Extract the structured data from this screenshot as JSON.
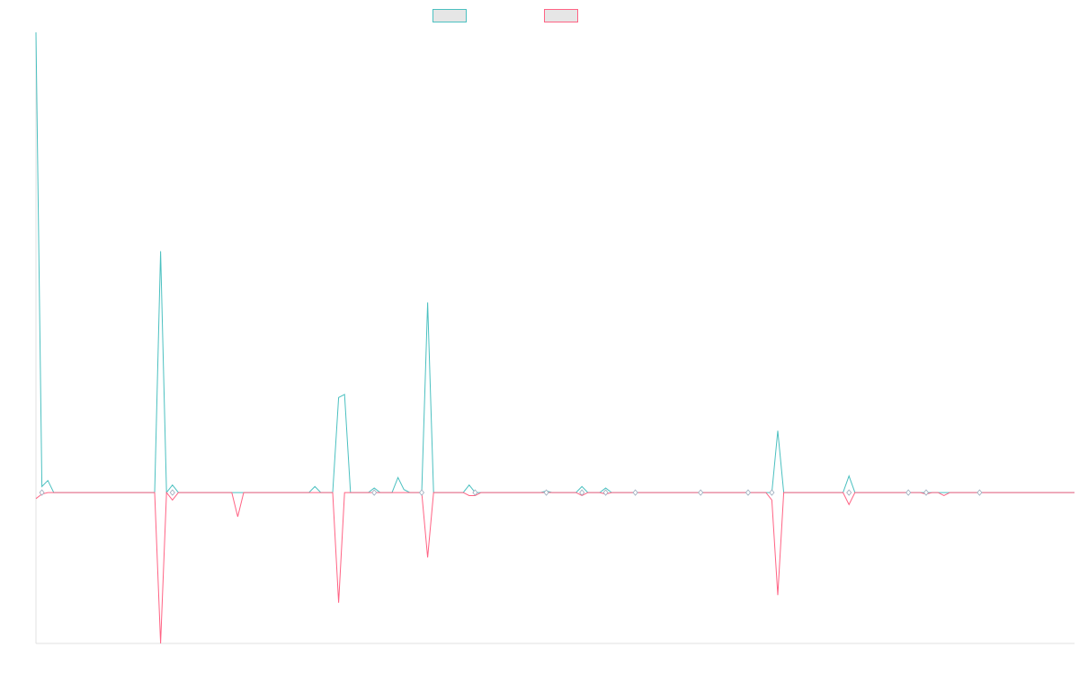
{
  "chart_data": {
    "type": "line",
    "title": "",
    "xlabel": "",
    "ylabel": "",
    "legend_placement": "top-center",
    "grid": false,
    "x_count": 176,
    "xlim": [
      0,
      175
    ],
    "ylim": [
      -1.0,
      3.05
    ],
    "baseline": 0,
    "series": [
      {
        "name": "",
        "color": "#4bc0c0",
        "fill": "#e6e6e6",
        "peaks": [
          [
            0,
            3.05
          ],
          [
            1,
            0.04
          ],
          [
            2,
            0.08
          ],
          [
            21,
            1.6
          ],
          [
            23,
            0.05
          ],
          [
            47,
            0.04
          ],
          [
            51,
            0.63
          ],
          [
            52,
            0.65
          ],
          [
            57,
            0.03
          ],
          [
            61,
            0.1
          ],
          [
            62,
            0.02
          ],
          [
            66,
            1.26
          ],
          [
            73,
            0.05
          ],
          [
            86,
            0.01
          ],
          [
            92,
            0.04
          ],
          [
            96,
            0.03
          ],
          [
            125,
            0.41
          ],
          [
            137,
            0.11
          ]
        ]
      },
      {
        "name": "",
        "color": "#ff6384",
        "fill": "#e6e6e6",
        "peaks": [
          [
            0,
            -0.04
          ],
          [
            1,
            -0.01
          ],
          [
            21,
            -1.0
          ],
          [
            23,
            -0.05
          ],
          [
            34,
            -0.16
          ],
          [
            51,
            -0.73
          ],
          [
            66,
            -0.43
          ],
          [
            73,
            -0.02
          ],
          [
            74,
            -0.02
          ],
          [
            92,
            -0.02
          ],
          [
            96,
            -0.01
          ],
          [
            124,
            -0.05
          ],
          [
            125,
            -0.68
          ],
          [
            137,
            -0.08
          ],
          [
            150,
            -0.01
          ],
          [
            153,
            -0.02
          ]
        ]
      }
    ],
    "markers": [
      1,
      23,
      57,
      65,
      74,
      86,
      92,
      96,
      101,
      112,
      120,
      124,
      137,
      147,
      150,
      159
    ]
  }
}
